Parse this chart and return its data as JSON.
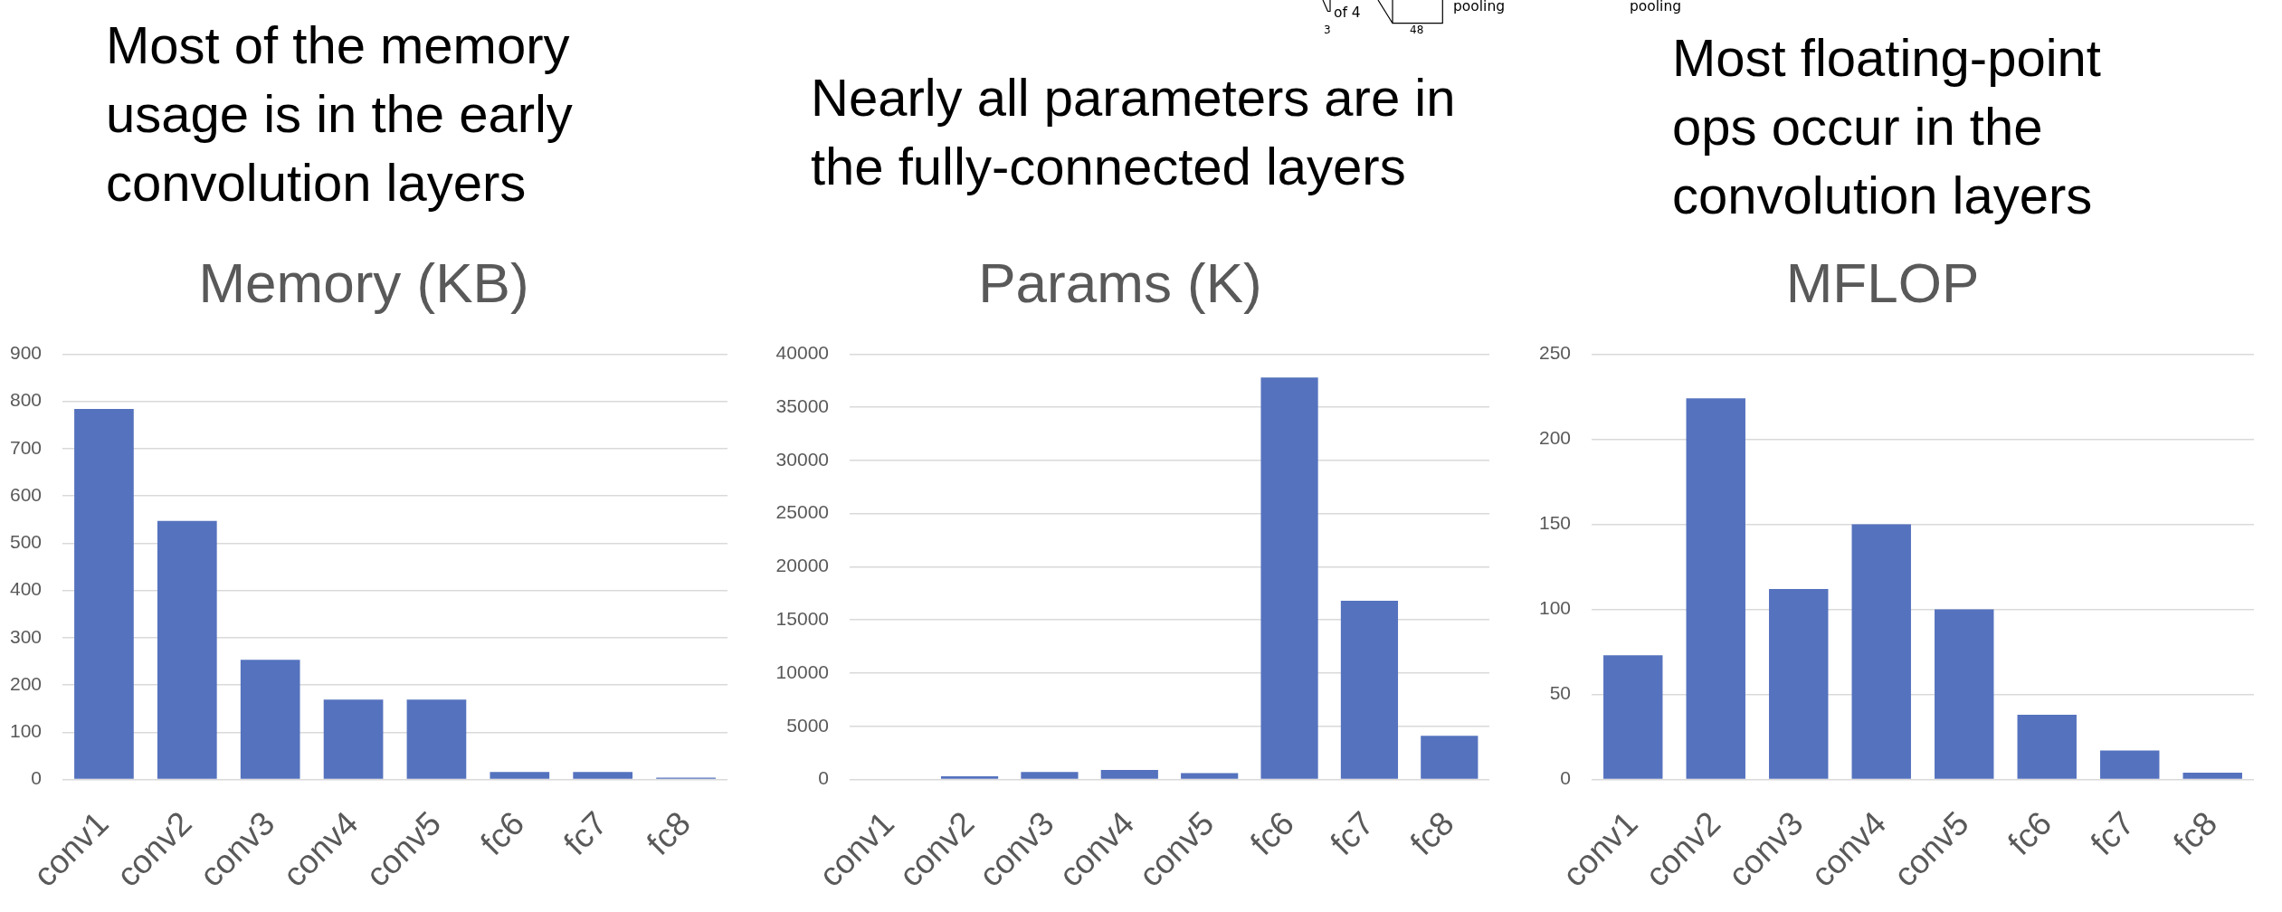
{
  "chart_data": [
    {
      "type": "bar",
      "title": "Memory (KB)",
      "categories": [
        "conv1",
        "conv2",
        "conv3",
        "conv4",
        "conv5",
        "fc6",
        "fc7",
        "fc8"
      ],
      "values": [
        784,
        547,
        253,
        169,
        169,
        16,
        16,
        4
      ],
      "color": "#5572be",
      "ylim": [
        0,
        900
      ],
      "yticks": [
        0,
        100,
        200,
        300,
        400,
        500,
        600,
        700,
        800,
        900
      ],
      "grid": "y",
      "annotations": [
        "Most of the memory usage is in the early convolution layers"
      ]
    },
    {
      "type": "bar",
      "title": "Params (K)",
      "categories": [
        "conv1",
        "conv2",
        "conv3",
        "conv4",
        "conv5",
        "fc6",
        "fc7",
        "fc8"
      ],
      "values": [
        0,
        300,
        700,
        900,
        600,
        37800,
        16800,
        4100
      ],
      "color": "#5572be",
      "ylim": [
        0,
        40000
      ],
      "yticks": [
        0,
        5000,
        10000,
        15000,
        20000,
        25000,
        30000,
        35000,
        40000
      ],
      "grid": "y",
      "annotations": [
        "Nearly all parameters are in the fully-connected layers",
        "of 4",
        "3",
        "48",
        "pooling"
      ]
    },
    {
      "type": "bar",
      "title": "MFLOP",
      "categories": [
        "conv1",
        "conv2",
        "conv3",
        "conv4",
        "conv5",
        "fc6",
        "fc7",
        "fc8"
      ],
      "values": [
        73,
        224,
        112,
        150,
        100,
        38,
        17,
        4
      ],
      "color": "#5572be",
      "ylim": [
        0,
        250
      ],
      "yticks": [
        0,
        50,
        100,
        150,
        200,
        250
      ],
      "grid": "y",
      "annotations": [
        "Most floating-point ops occur in the convolution layers",
        "pooling"
      ]
    }
  ]
}
